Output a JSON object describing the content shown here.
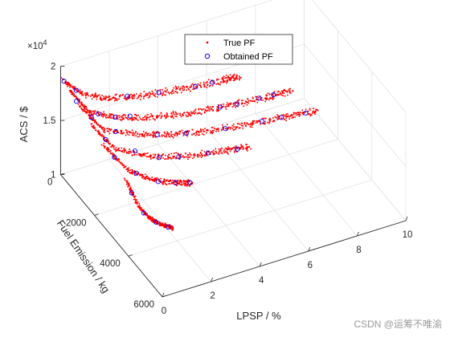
{
  "chart_data": {
    "type": "scatter3d",
    "title": "",
    "xlabel": "LPSP / %",
    "ylabel": "Fuel Emission / kg",
    "zlabel": "ACS / $",
    "z_exponent_label": "×10",
    "z_exponent_power": "4",
    "xlim": [
      0,
      10
    ],
    "ylim": [
      0,
      6000
    ],
    "zlim": [
      1,
      2
    ],
    "x_ticks": [
      "0",
      "2",
      "4",
      "6",
      "8",
      "10"
    ],
    "y_ticks": [
      "0",
      "2000",
      "4000",
      "6000"
    ],
    "z_ticks": [
      "1",
      "1.5",
      "2"
    ],
    "grid": true,
    "legend_position": "top-center",
    "series": [
      {
        "name": "True PF",
        "marker": "dot",
        "color": "#ff0000"
      },
      {
        "name": "Obtained PF",
        "marker": "circle",
        "color": "#0000ff"
      }
    ],
    "branches": [
      {
        "id": "A",
        "points": [
          [
            0.0,
            200,
            1.9
          ],
          [
            0.8,
            200,
            1.72
          ],
          [
            2.0,
            200,
            1.6
          ],
          [
            3.5,
            200,
            1.53
          ],
          [
            5.0,
            200,
            1.48
          ],
          [
            6.5,
            200,
            1.45
          ],
          [
            7.2,
            200,
            1.44
          ]
        ]
      },
      {
        "id": "B",
        "points": [
          [
            0.0,
            500,
            1.88
          ],
          [
            0.8,
            500,
            1.62
          ],
          [
            2.0,
            500,
            1.48
          ],
          [
            3.5,
            500,
            1.38
          ],
          [
            5.0,
            500,
            1.31
          ],
          [
            6.5,
            500,
            1.27
          ],
          [
            8.0,
            500,
            1.24
          ],
          [
            9.2,
            500,
            1.22
          ]
        ]
      },
      {
        "id": "C",
        "points": [
          [
            0.0,
            1100,
            1.84
          ],
          [
            1.0,
            1100,
            1.55
          ],
          [
            2.5,
            1100,
            1.4
          ],
          [
            4.0,
            1100,
            1.3
          ],
          [
            5.5,
            1100,
            1.23
          ],
          [
            7.0,
            1100,
            1.18
          ],
          [
            8.5,
            1100,
            1.14
          ],
          [
            9.8,
            1100,
            1.11
          ]
        ]
      },
      {
        "id": "D",
        "points": [
          [
            0.0,
            1800,
            1.8
          ],
          [
            1.0,
            1800,
            1.5
          ],
          [
            2.5,
            1800,
            1.33
          ],
          [
            4.0,
            1800,
            1.23
          ],
          [
            5.5,
            1800,
            1.17
          ],
          [
            6.5,
            1800,
            1.14
          ]
        ]
      },
      {
        "id": "E",
        "points": [
          [
            0.0,
            2600,
            1.75
          ],
          [
            1.0,
            2600,
            1.45
          ],
          [
            2.0,
            2600,
            1.3
          ],
          [
            3.0,
            2600,
            1.2
          ],
          [
            3.6,
            2600,
            1.16
          ]
        ]
      },
      {
        "id": "F",
        "points": [
          [
            0.0,
            3900,
            1.67
          ],
          [
            0.5,
            3900,
            1.4
          ],
          [
            1.0,
            3900,
            1.25
          ],
          [
            1.5,
            3900,
            1.16
          ],
          [
            1.9,
            3900,
            1.11
          ]
        ]
      }
    ],
    "obtained_points": [
      [
        0.0,
        200,
        1.9
      ],
      [
        0.5,
        200,
        1.78
      ],
      [
        2.6,
        200,
        1.58
      ],
      [
        3.9,
        200,
        1.52
      ],
      [
        5.4,
        200,
        1.47
      ],
      [
        6.1,
        200,
        1.46
      ],
      [
        0.3,
        500,
        1.75
      ],
      [
        1.2,
        500,
        1.57
      ],
      [
        1.9,
        500,
        1.49
      ],
      [
        2.5,
        500,
        1.46
      ],
      [
        6.2,
        500,
        1.28
      ],
      [
        6.9,
        500,
        1.26
      ],
      [
        7.8,
        500,
        1.25
      ],
      [
        8.4,
        500,
        1.24
      ],
      [
        0.5,
        1100,
        1.7
      ],
      [
        1.5,
        1100,
        1.5
      ],
      [
        3.2,
        1100,
        1.35
      ],
      [
        4.4,
        1100,
        1.28
      ],
      [
        6.0,
        1100,
        1.21
      ],
      [
        7.5,
        1100,
        1.17
      ],
      [
        8.3,
        1100,
        1.15
      ],
      [
        9.3,
        1100,
        1.12
      ],
      [
        0.6,
        1800,
        1.62
      ],
      [
        1.8,
        1800,
        1.43
      ],
      [
        2.8,
        1800,
        1.3
      ],
      [
        3.6,
        1800,
        1.25
      ],
      [
        4.8,
        1800,
        1.2
      ],
      [
        6.0,
        1800,
        1.15
      ],
      [
        0.4,
        2600,
        1.62
      ],
      [
        1.3,
        2600,
        1.41
      ],
      [
        2.2,
        2600,
        1.27
      ],
      [
        2.9,
        2600,
        1.21
      ],
      [
        3.5,
        2600,
        1.17
      ],
      [
        0.2,
        3900,
        1.55
      ],
      [
        0.7,
        3900,
        1.33
      ],
      [
        1.2,
        3900,
        1.21
      ],
      [
        1.7,
        3900,
        1.13
      ]
    ]
  },
  "watermark": "CSDN @运筹不唯渝"
}
